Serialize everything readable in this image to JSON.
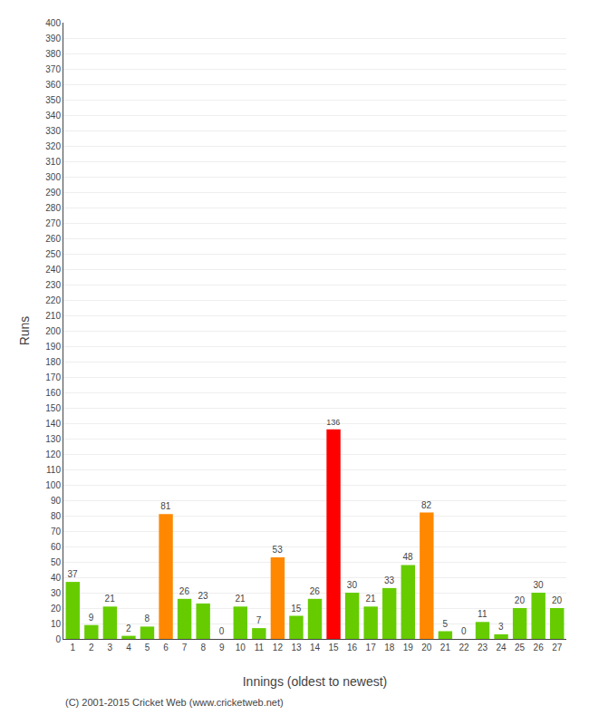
{
  "chart_data": {
    "type": "bar",
    "categories": [
      "1",
      "2",
      "3",
      "4",
      "5",
      "6",
      "7",
      "8",
      "9",
      "10",
      "11",
      "12",
      "13",
      "14",
      "15",
      "16",
      "17",
      "18",
      "19",
      "20",
      "21",
      "22",
      "23",
      "24",
      "25",
      "26",
      "27"
    ],
    "values": [
      37,
      9,
      21,
      2,
      8,
      81,
      26,
      23,
      0,
      21,
      7,
      53,
      15,
      26,
      136,
      30,
      21,
      33,
      48,
      82,
      5,
      0,
      11,
      3,
      20,
      30,
      20
    ],
    "colors": [
      "#66cc00",
      "#66cc00",
      "#66cc00",
      "#66cc00",
      "#66cc00",
      "#ff8800",
      "#66cc00",
      "#66cc00",
      "#66cc00",
      "#66cc00",
      "#66cc00",
      "#ff8800",
      "#66cc00",
      "#66cc00",
      "#ff0000",
      "#66cc00",
      "#66cc00",
      "#66cc00",
      "#66cc00",
      "#ff8800",
      "#66cc00",
      "#66cc00",
      "#66cc00",
      "#66cc00",
      "#66cc00",
      "#66cc00",
      "#66cc00"
    ],
    "xlabel": "Innings (oldest to newest)",
    "ylabel": "Runs",
    "annotations": [
      "(C) 2001-2015 Cricket Web (www.cricketweb.net)"
    ],
    "ylim": [
      0,
      400
    ],
    "yticks": [
      0,
      10,
      20,
      30,
      40,
      50,
      60,
      70,
      80,
      90,
      100,
      110,
      120,
      130,
      140,
      150,
      160,
      170,
      180,
      190,
      200,
      210,
      220,
      230,
      240,
      250,
      260,
      270,
      280,
      290,
      300,
      310,
      320,
      330,
      340,
      350,
      360,
      370,
      380,
      390,
      400
    ],
    "grid": true,
    "data_labels": true
  }
}
